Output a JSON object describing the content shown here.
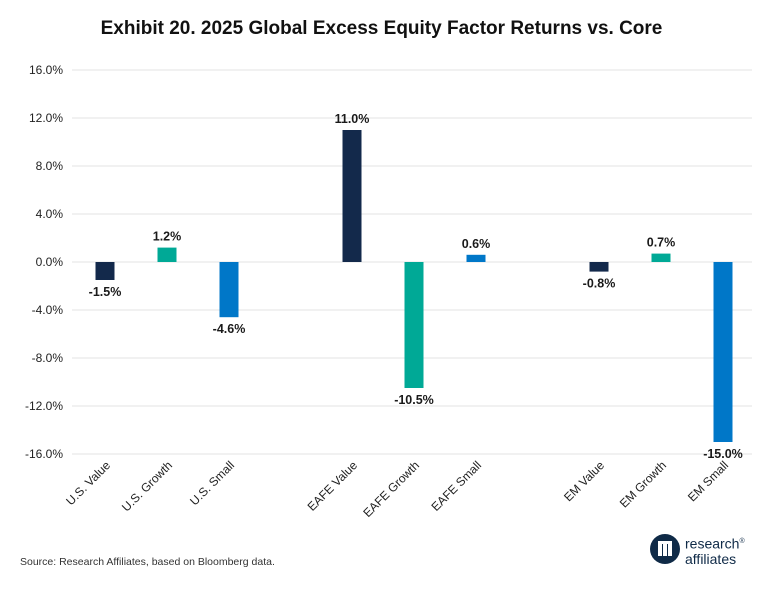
{
  "title": "Exhibit 20. 2025 Global Excess Equity Factor Returns vs. Core",
  "source": "Source: Research Affiliates, based on Bloomberg data.",
  "logo": {
    "line1": "research",
    "line2": "affiliates",
    "mark": "ra"
  },
  "chart_data": {
    "type": "bar",
    "title": "Exhibit 20. 2025 Global Excess Equity Factor Returns vs. Core",
    "xlabel": "",
    "ylabel": "",
    "ylim": [
      -16,
      16
    ],
    "yticks": [
      "16.0%",
      "12.0%",
      "8.0%",
      "4.0%",
      "0.0%",
      "-4.0%",
      "-8.0%",
      "-12.0%",
      "-16.0%"
    ],
    "ytick_values": [
      16,
      12,
      8,
      4,
      0,
      -4,
      -8,
      -12,
      -16
    ],
    "grid": true,
    "legend": "none",
    "categories": [
      "U.S. Value",
      "U.S. Growth",
      "U.S. Small",
      "EAFE Value",
      "EAFE Growth",
      "EAFE Small",
      "EM Value",
      "EM Growth",
      "EM Small"
    ],
    "values": [
      -1.5,
      1.2,
      -4.6,
      11.0,
      -10.5,
      0.6,
      -0.8,
      0.7,
      -15.0
    ],
    "value_labels": [
      "-1.5%",
      "1.2%",
      "-4.6%",
      "11.0%",
      "-10.5%",
      "0.6%",
      "-0.8%",
      "0.7%",
      "-15.0%"
    ],
    "colors": [
      "#13294b",
      "#00a996",
      "#0077c8",
      "#13294b",
      "#00a996",
      "#0077c8",
      "#13294b",
      "#00a996",
      "#0077c8"
    ]
  }
}
